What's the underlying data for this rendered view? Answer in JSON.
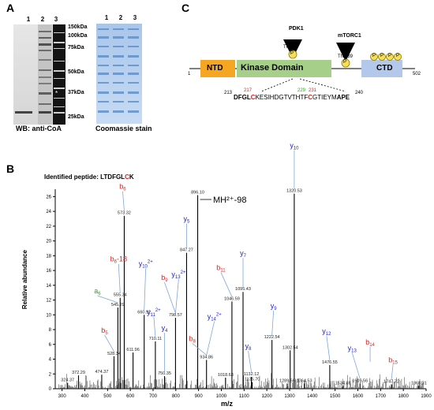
{
  "panels": {
    "a": "A",
    "b": "B",
    "c": "C"
  },
  "panel_a": {
    "lanes": [
      "1",
      "2",
      "3"
    ],
    "markers": [
      "150kDa",
      "100kDa",
      "75kDa",
      "50kDa",
      "37kDa",
      "25kDa"
    ],
    "wb_caption": "WB: anti-CoA",
    "coomassie_caption": "Coomassie  stain",
    "band_mark": "*"
  },
  "panel_c": {
    "ntd": "NTD",
    "kinase": "Kinase Domain",
    "ctd": "CTD",
    "pdk1": "PDK1",
    "thr229": "Thr229",
    "mtorc1": "mTORC1",
    "thr389": "Thr389",
    "p": "P",
    "pos_start": "1",
    "pos_end": "502",
    "seq_start": "213",
    "seq_end": "240",
    "res217": "217",
    "res229": "229",
    "res231": "231",
    "seq_a": "DFGL",
    "seq_b": "C",
    "seq_c": "KESIHDGTVTHT",
    "seq_d": "F",
    "seq_e": "C",
    "seq_f": "GTIEYM",
    "seq_g": "APE"
  },
  "panel_b": {
    "peptide_prefix": "Identified peptide: LTDFGL",
    "peptide_c": "C",
    "peptide_k": "K",
    "mh_label": "MH²⁺-98",
    "ylabel": "Relative abundance",
    "xlabel": "m/z",
    "colors": {
      "b_ion": "#e02020",
      "y_ion": "#2020cc",
      "a_ion": "#22aa22",
      "arrow": "#7fa7d8"
    },
    "chart_data": {
      "type": "bar",
      "xlim": [
        270,
        1900
      ],
      "ylim": [
        0,
        27
      ],
      "xticks": [
        300,
        400,
        500,
        600,
        700,
        800,
        900,
        1000,
        1100,
        1200,
        1300,
        1400,
        1500,
        1600,
        1700,
        1800,
        1900
      ],
      "yticks": [
        0,
        2,
        4,
        6,
        8,
        10,
        12,
        14,
        16,
        18,
        20,
        22,
        24,
        26
      ],
      "peaks": [
        {
          "mz": 324.37,
          "i": 0.8,
          "label": "324.37"
        },
        {
          "mz": 372.29,
          "i": 1.8,
          "label": "372.29"
        },
        {
          "mz": 474.37,
          "i": 1.9,
          "label": "474.37"
        },
        {
          "mz": 528.34,
          "i": 4.4,
          "label": "528.34"
        },
        {
          "mz": 545.29,
          "i": 11.0,
          "label": "545.29"
        },
        {
          "mz": 555.34,
          "i": 12.3,
          "label": "555.34"
        },
        {
          "mz": 573.32,
          "i": 23.4,
          "label": "573.32"
        },
        {
          "mz": 611.96,
          "i": 4.9,
          "label": "611.96"
        },
        {
          "mz": 660.92,
          "i": 10.0,
          "label": "660.92"
        },
        {
          "mz": 710.11,
          "i": 6.4,
          "label": "710.11"
        },
        {
          "mz": 750.35,
          "i": 1.7,
          "label": "750.35"
        },
        {
          "mz": 798.57,
          "i": 9.6,
          "label": "798.57"
        },
        {
          "mz": 847.27,
          "i": 18.4,
          "label": "847.27"
        },
        {
          "mz": 896.1,
          "i": 26.2,
          "label": "896.10"
        },
        {
          "mz": 934.86,
          "i": 3.9,
          "label": "934.86"
        },
        {
          "mz": 1018.63,
          "i": 1.5,
          "label": "1018.63"
        },
        {
          "mz": 1046.59,
          "i": 11.8,
          "label": "1046.59"
        },
        {
          "mz": 1095.43,
          "i": 13.1,
          "label": "1095.43"
        },
        {
          "mz": 1132.12,
          "i": 1.6,
          "label": "1132.12"
        },
        {
          "mz": 1135.7,
          "i": 0.9,
          "label": "1135.70"
        },
        {
          "mz": 1222.54,
          "i": 6.6,
          "label": "1222.54"
        },
        {
          "mz": 1289.56,
          "i": 0.7,
          "label": "1289.56"
        },
        {
          "mz": 1302.54,
          "i": 5.2,
          "label": "1302.54"
        },
        {
          "mz": 1320.53,
          "i": 26.4,
          "label": "1320.53"
        },
        {
          "mz": 1364.53,
          "i": 0.7,
          "label": "1364.53"
        },
        {
          "mz": 1476.55,
          "i": 3.2,
          "label": "1476.55"
        },
        {
          "mz": 1534.88,
          "i": 0.4,
          "label": "1534.88"
        },
        {
          "mz": 1609.56,
          "i": 0.7,
          "label": "1609.56"
        },
        {
          "mz": 1747.72,
          "i": 0.6,
          "label": "1747.72"
        },
        {
          "mz": 1868.31,
          "i": 0.4,
          "label": "1868.31"
        }
      ],
      "ion_labels": [
        {
          "base": "b",
          "sub": "6",
          "sup": "",
          "suffix": "",
          "type": "b",
          "mz": 573.32
        },
        {
          "base": "y",
          "sub": "10",
          "sup": "2+",
          "suffix": "",
          "type": "y",
          "mz": 660.92
        },
        {
          "base": "b",
          "sub": "6",
          "sup": "",
          "suffix": "-18",
          "type": "b",
          "mz": 555.34
        },
        {
          "base": "a",
          "sub": "6",
          "sup": "",
          "suffix": "",
          "type": "a",
          "mz": 545.29
        },
        {
          "base": "b",
          "sub": "5",
          "sup": "",
          "suffix": "",
          "type": "b",
          "mz": 528.34
        },
        {
          "base": "y",
          "sub": "5",
          "sup": "",
          "suffix": "",
          "type": "y",
          "mz": 847.27
        },
        {
          "base": "b",
          "sub": "9",
          "sup": "",
          "suffix": "",
          "type": "b",
          "mz": 798.57
        },
        {
          "base": "y",
          "sub": "13",
          "sup": "2+",
          "suffix": "",
          "type": "y",
          "mz": 798.57
        },
        {
          "base": "y",
          "sub": "11",
          "sup": "2+",
          "suffix": "",
          "type": "y",
          "mz": 710.11
        },
        {
          "base": "y",
          "sub": "4",
          "sup": "",
          "suffix": "",
          "type": "y",
          "mz": 750.35
        },
        {
          "base": "y",
          "sub": "14",
          "sup": "2+",
          "suffix": "",
          "type": "y",
          "mz": 934.86
        },
        {
          "base": "b",
          "sub": "8",
          "sup": "",
          "suffix": "",
          "type": "b",
          "mz": 934.86
        },
        {
          "base": "y",
          "sub": "7",
          "sup": "",
          "suffix": "",
          "type": "y",
          "mz": 1095.43
        },
        {
          "base": "b",
          "sub": "11",
          "sup": "",
          "suffix": "",
          "type": "b",
          "mz": 1046.59
        },
        {
          "base": "y",
          "sub": "9",
          "sup": "",
          "suffix": "",
          "type": "y",
          "mz": 1222.54
        },
        {
          "base": "y",
          "sub": "8",
          "sup": "",
          "suffix": "",
          "type": "y",
          "mz": 1132.12
        },
        {
          "base": "y",
          "sub": "10",
          "sup": "",
          "suffix": "",
          "type": "y",
          "mz": 1320.53
        },
        {
          "base": "y",
          "sub": "12",
          "sup": "",
          "suffix": "",
          "type": "y",
          "mz": 1476.55
        },
        {
          "base": "y",
          "sub": "13",
          "sup": "",
          "suffix": "",
          "type": "y",
          "mz": 1609.56
        },
        {
          "base": "b",
          "sub": "14",
          "sup": "",
          "suffix": "",
          "type": "b",
          "mz": 1654.0
        },
        {
          "base": "b",
          "sub": "15",
          "sup": "",
          "suffix": "",
          "type": "b",
          "mz": 1747.72
        }
      ]
    }
  }
}
